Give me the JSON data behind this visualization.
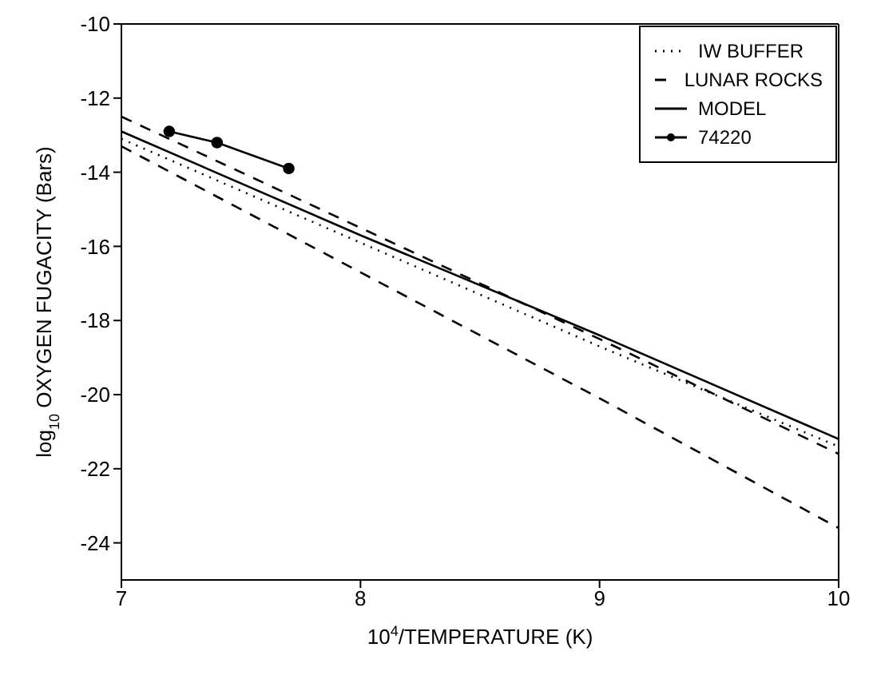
{
  "chart_data": {
    "type": "line",
    "xlabel": "10$^{4}$/TEMPERATURE (K)",
    "ylabel": "log$_{10}$ OXYGEN FUGACITY (Bars)",
    "xlim": [
      7,
      10
    ],
    "xticks": [
      7,
      8,
      9,
      10
    ],
    "ylim": [
      -25,
      -10
    ],
    "yticks": [
      -24,
      -22,
      -20,
      -18,
      -16,
      -14,
      -12,
      -10
    ],
    "grid": false,
    "legend": "top right",
    "marker": "none",
    "series": [
      {
        "name": "IW BUFFER",
        "color": "#000000",
        "line_style": "dotted",
        "x": [
          7,
          8,
          9,
          10
        ],
        "values": [
          -13.1,
          -15.9,
          -18.7,
          -21.4
        ]
      },
      {
        "name": "LUNAR ROCKS",
        "color": "#000000",
        "line_style": "dashed",
        "x": [
          7,
          8,
          9,
          10
        ],
        "values": [
          -12.5,
          -15.5,
          -18.5,
          -21.6
        ]
      },
      {
        "color": "#000000",
        "line_style": "dashed",
        "x": [
          7,
          8,
          9,
          10
        ],
        "values": [
          -13.3,
          -16.7,
          -20.1,
          -23.6
        ]
      },
      {
        "name": "MODEL",
        "color": "#000000",
        "line_style": "solid",
        "x": [
          7,
          8,
          9,
          10
        ],
        "values": [
          -12.9,
          -15.7,
          -18.4,
          -21.2
        ]
      },
      {
        "name": "74220",
        "color": "#000000",
        "line_style": "solid",
        "marker": "circle",
        "x": [
          7.2,
          7.4,
          7.7
        ],
        "values": [
          -12.9,
          -13.2,
          -13.9
        ]
      }
    ]
  }
}
